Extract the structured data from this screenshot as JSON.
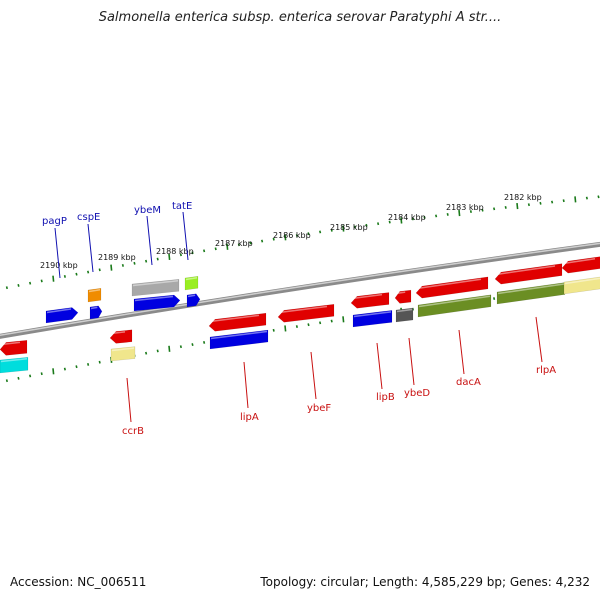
{
  "title": "Salmonella enterica subsp. enterica serovar Paratyphi A str....",
  "footer": {
    "accession": "Accession: NC_006511",
    "summary": "Topology: circular; Length: 4,585,229 bp; Genes: 4,232"
  },
  "kbp_labels": [
    "2190 kbp",
    "2189 kbp",
    "2188 kbp",
    "2187 kbp",
    "2186 kbp",
    "2185 kbp",
    "2184 kbp",
    "2183 kbp",
    "2182 kbp"
  ],
  "genes_top": [
    "pagP",
    "cspE",
    "ybeM",
    "tatE"
  ],
  "genes_bottom": [
    "ccrB",
    "lipA",
    "ybeF",
    "lipB",
    "ybeD",
    "dacA",
    "rlpA"
  ],
  "colors": {
    "red": "#e00000",
    "blue": "#0000e0",
    "orange": "#f08c00",
    "gray": "#a8a8a8",
    "lime": "#99ee22",
    "olive": "#6b8e23",
    "khaki": "#f0e68c",
    "cyan": "#00dddd",
    "dark_gray": "#555555",
    "tick_green": "#1a7a1a"
  }
}
